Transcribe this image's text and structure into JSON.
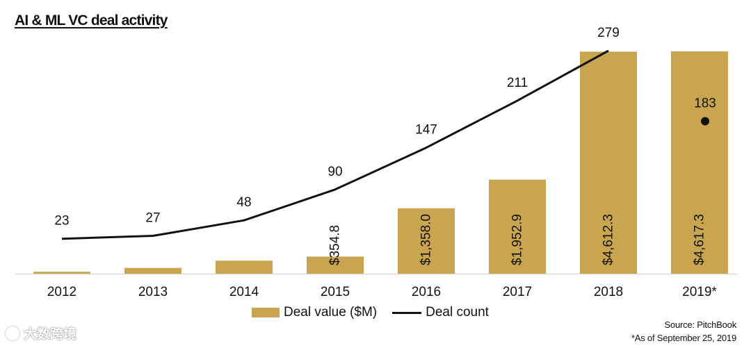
{
  "colors": {
    "bar": "#C9A54F",
    "line": "#111111",
    "text": "#111111",
    "axis": "#d0d0d0"
  },
  "chart_data": {
    "type": "bar",
    "title": "AI & ML VC deal activity",
    "categories": [
      "2012",
      "2013",
      "2014",
      "2015",
      "2016",
      "2017",
      "2018",
      "2019*"
    ],
    "series": [
      {
        "name": "Deal value ($M)",
        "kind": "bar",
        "values": [
          40,
          120,
          270,
          354.8,
          1358.0,
          1952.9,
          4612.3,
          4617.3
        ]
      },
      {
        "name": "Deal count",
        "kind": "line",
        "values": [
          23,
          27,
          48,
          90,
          147,
          211,
          279,
          183
        ]
      }
    ],
    "bar_labels": [
      "",
      "",
      "",
      "$354.8",
      "$1,358.0",
      "$1,952.9",
      "$4,612.3",
      "$4,617.3"
    ],
    "count_labels": [
      "23",
      "27",
      "48",
      "90",
      "147",
      "211",
      "279",
      "183"
    ],
    "line_connected_count": 7,
    "bar_ylim": [
      0,
      4617.3
    ],
    "count_ylim": [
      0,
      279
    ],
    "legend": [
      "Deal value ($M)",
      "Deal count"
    ]
  },
  "source": {
    "line1": "Source: PitchBook",
    "line2": "*As of September 25, 2019"
  },
  "watermark": {
    "text": "大数跨境"
  }
}
